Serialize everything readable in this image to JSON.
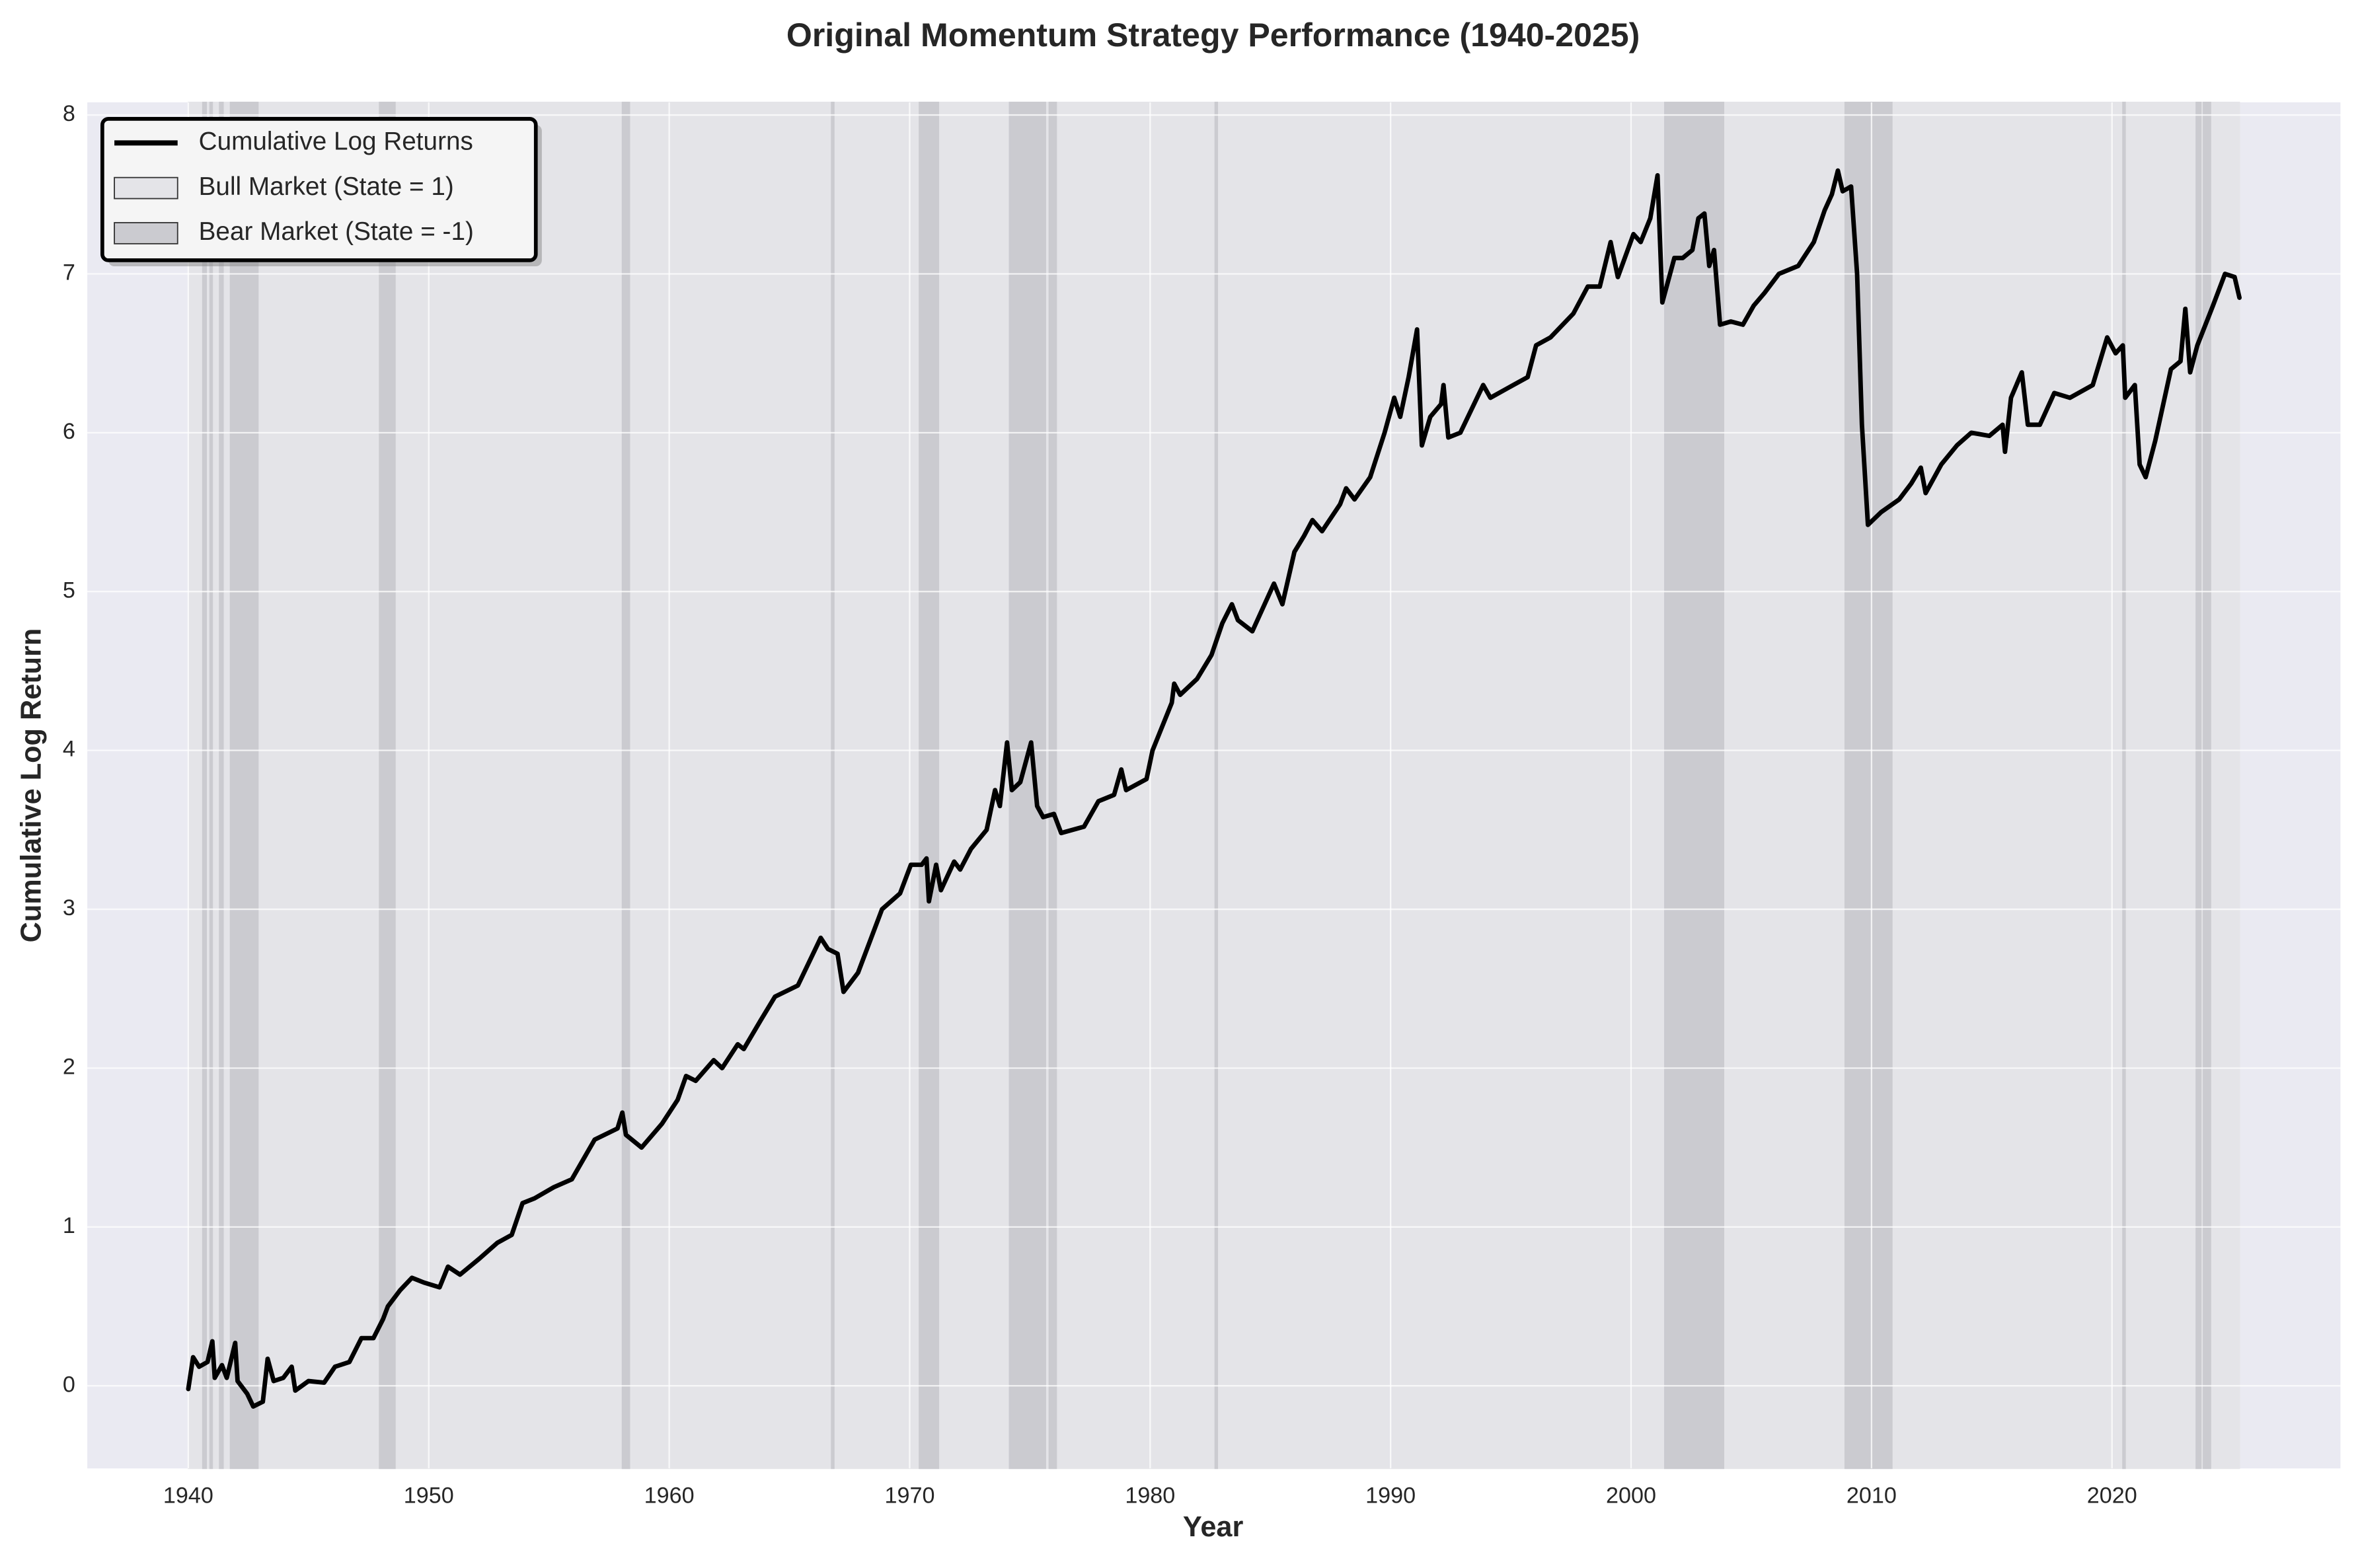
{
  "chart_data": {
    "type": "line",
    "title": "Original Momentum Strategy Performance (1940-2025)",
    "x_label": "Year",
    "y_label": "Cumulative Log Return",
    "xlim": [
      1935.8,
      2029.5
    ],
    "ylim": [
      -0.52,
      8.08
    ],
    "xticks": [
      1940,
      1950,
      1960,
      1970,
      1980,
      1990,
      2000,
      2010,
      2020
    ],
    "yticks": [
      0,
      1,
      2,
      3,
      4,
      5,
      6,
      7,
      8
    ],
    "grid": true,
    "legend": "upper left",
    "series": [
      {
        "name": "Cumulative Log Returns",
        "color": "#000000",
        "x": [
          1940.0,
          1940.2,
          1940.45,
          1940.8,
          1941.0,
          1941.1,
          1941.4,
          1941.6,
          1941.95,
          1942.05,
          1942.45,
          1942.7,
          1943.1,
          1943.3,
          1943.55,
          1943.95,
          1944.3,
          1944.45,
          1945.0,
          1945.65,
          1946.1,
          1946.7,
          1947.2,
          1947.7,
          1948.1,
          1948.3,
          1948.8,
          1949.3,
          1949.8,
          1950.45,
          1950.8,
          1951.3,
          1952.1,
          1952.85,
          1953.45,
          1953.9,
          1954.4,
          1955.2,
          1955.95,
          1956.9,
          1957.85,
          1958.05,
          1958.2,
          1958.85,
          1959.7,
          1960.35,
          1960.7,
          1961.1,
          1961.85,
          1962.2,
          1962.85,
          1963.1,
          1963.8,
          1964.4,
          1965.35,
          1966.3,
          1966.6,
          1967.0,
          1967.25,
          1967.85,
          1968.35,
          1968.85,
          1969.6,
          1970.05,
          1970.5,
          1970.7,
          1970.8,
          1971.1,
          1971.3,
          1971.85,
          1972.1,
          1972.55,
          1973.2,
          1973.55,
          1973.75,
          1974.05,
          1974.25,
          1974.6,
          1975.05,
          1975.3,
          1975.55,
          1976.0,
          1976.3,
          1977.25,
          1977.85,
          1978.5,
          1978.8,
          1979.0,
          1979.85,
          1980.1,
          1980.5,
          1980.9,
          1981.0,
          1981.25,
          1981.95,
          1982.55,
          1983.0,
          1983.4,
          1983.65,
          1984.25,
          1985.15,
          1985.5,
          1986.0,
          1986.4,
          1986.75,
          1987.15,
          1987.9,
          1988.15,
          1988.5,
          1989.15,
          1989.75,
          1990.15,
          1990.4,
          1990.75,
          1991.1,
          1991.3,
          1991.65,
          1992.1,
          1992.2,
          1992.4,
          1992.9,
          1993.85,
          1994.15,
          1995.1,
          1995.7,
          1996.05,
          1996.65,
          1997.6,
          1998.2,
          1998.7,
          1999.15,
          1999.45,
          2000.1,
          2000.4,
          2000.8,
          2001.1,
          2001.3,
          2001.8,
          2002.15,
          2002.55,
          2002.8,
          2003.05,
          2003.25,
          2003.45,
          2003.7,
          2004.15,
          2004.65,
          2005.1,
          2005.55,
          2006.15,
          2006.95,
          2007.6,
          2008.05,
          2008.35,
          2008.6,
          2008.8,
          2009.15,
          2009.4,
          2009.6,
          2009.85,
          2010.4,
          2011.15,
          2011.65,
          2012.05,
          2012.25,
          2012.9,
          2013.55,
          2014.15,
          2014.9,
          2015.45,
          2015.55,
          2015.8,
          2016.25,
          2016.5,
          2017.0,
          2017.6,
          2018.25,
          2019.2,
          2019.8,
          2020.15,
          2020.45,
          2020.55,
          2020.95,
          2021.15,
          2021.4,
          2021.8,
          2022.45,
          2022.85,
          2023.05,
          2023.25,
          2023.55,
          2024.2,
          2024.7,
          2025.1,
          2025.3
        ],
        "values": [
          -0.02,
          0.18,
          0.12,
          0.15,
          0.28,
          0.05,
          0.13,
          0.05,
          0.27,
          0.03,
          -0.05,
          -0.13,
          -0.1,
          0.17,
          0.03,
          0.05,
          0.12,
          -0.03,
          0.03,
          0.02,
          0.12,
          0.15,
          0.3,
          0.3,
          0.42,
          0.5,
          0.6,
          0.68,
          0.65,
          0.62,
          0.75,
          0.7,
          0.8,
          0.9,
          0.95,
          1.15,
          1.18,
          1.25,
          1.3,
          1.55,
          1.62,
          1.72,
          1.58,
          1.5,
          1.65,
          1.8,
          1.95,
          1.92,
          2.05,
          2.0,
          2.15,
          2.12,
          2.3,
          2.45,
          2.52,
          2.82,
          2.75,
          2.72,
          2.48,
          2.6,
          2.8,
          3.0,
          3.1,
          3.28,
          3.28,
          3.32,
          3.05,
          3.28,
          3.12,
          3.3,
          3.25,
          3.38,
          3.5,
          3.75,
          3.65,
          4.05,
          3.75,
          3.8,
          4.05,
          3.65,
          3.58,
          3.6,
          3.48,
          3.52,
          3.68,
          3.72,
          3.88,
          3.75,
          3.82,
          4.0,
          4.15,
          4.3,
          4.42,
          4.35,
          4.45,
          4.6,
          4.8,
          4.92,
          4.82,
          4.75,
          5.05,
          4.92,
          5.25,
          5.35,
          5.45,
          5.38,
          5.55,
          5.65,
          5.58,
          5.72,
          6.0,
          6.22,
          6.1,
          6.35,
          6.65,
          5.92,
          6.1,
          6.18,
          6.3,
          5.97,
          6.0,
          6.3,
          6.22,
          6.3,
          6.35,
          6.55,
          6.6,
          6.75,
          6.92,
          6.92,
          7.2,
          6.98,
          7.25,
          7.2,
          7.35,
          7.62,
          6.82,
          7.1,
          7.1,
          7.15,
          7.35,
          7.38,
          7.05,
          7.15,
          6.68,
          6.7,
          6.68,
          6.8,
          6.88,
          7.0,
          7.05,
          7.2,
          7.4,
          7.5,
          7.65,
          7.52,
          7.55,
          7.0,
          6.05,
          5.42,
          5.5,
          5.58,
          5.68,
          5.78,
          5.62,
          5.8,
          5.92,
          6.0,
          5.98,
          6.05,
          5.88,
          6.22,
          6.38,
          6.05,
          6.05,
          6.25,
          6.22,
          6.3,
          6.6,
          6.5,
          6.55,
          6.22,
          6.3,
          5.8,
          5.72,
          5.95,
          6.4,
          6.45,
          6.78,
          6.38,
          6.55,
          6.8,
          7.0,
          6.98,
          6.85
        ]
      }
    ],
    "regions": [
      {
        "name": "Bull Market (State = 1)",
        "color": "#e4e4e8",
        "spans": [
          [
            1940.0,
            2025.3
          ]
        ]
      },
      {
        "name": "Bear Market (State = -1)",
        "color": "#cbcbd0",
        "spans": [
          [
            1940.6,
            1940.75
          ],
          [
            1940.9,
            1941.0
          ],
          [
            1941.3,
            1941.45
          ],
          [
            1941.75,
            1942.9
          ],
          [
            1947.95,
            1948.6
          ],
          [
            1958.05,
            1958.35
          ],
          [
            1966.75,
            1966.85
          ],
          [
            1970.4,
            1971.2
          ],
          [
            1974.15,
            1975.65
          ],
          [
            1975.8,
            1976.1
          ],
          [
            1982.7,
            1982.8
          ],
          [
            2001.4,
            2003.85
          ],
          [
            2008.9,
            2010.85
          ],
          [
            2020.45,
            2020.55
          ],
          [
            2023.5,
            2023.7
          ],
          [
            2023.8,
            2024.1
          ]
        ]
      }
    ]
  }
}
